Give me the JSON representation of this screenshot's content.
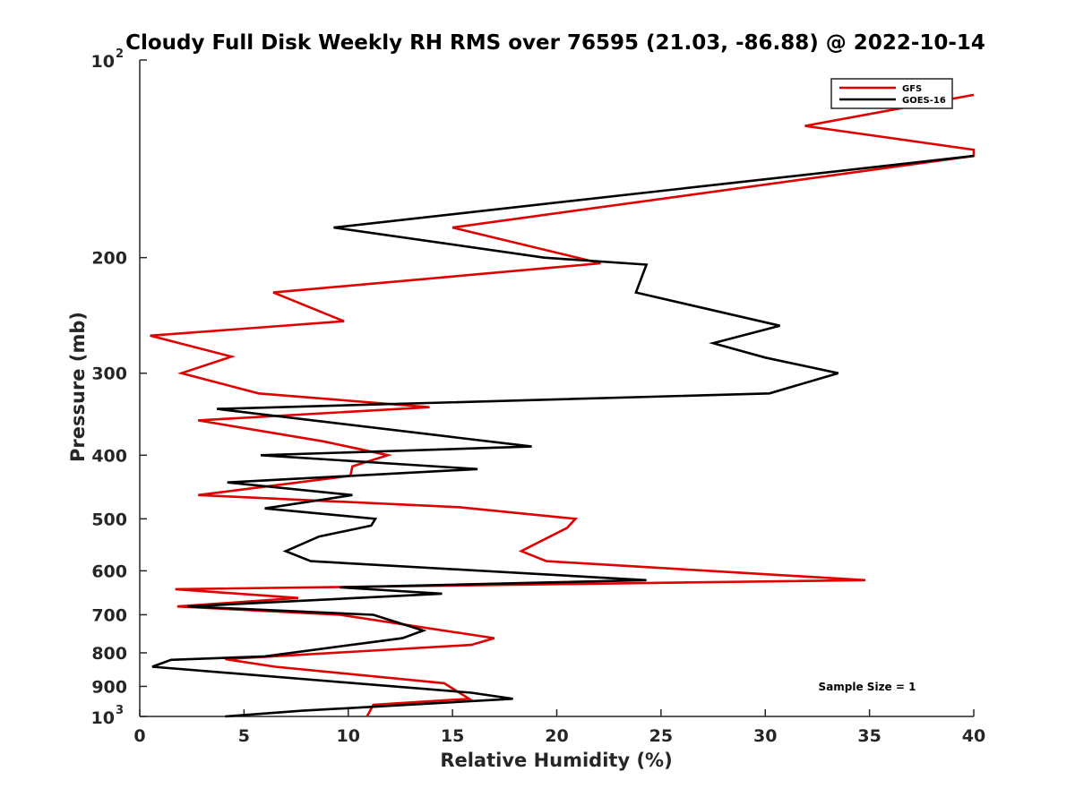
{
  "chart_data": {
    "type": "line",
    "title": "Cloudy Full Disk Weekly RH RMS over 76595 (21.03, -86.88) @ 2022-10-14",
    "xlabel": "Relative Humidity (%)",
    "ylabel": "Pressure (mb)",
    "xlim": [
      0,
      40
    ],
    "ylim": [
      100,
      1000
    ],
    "yscale": "log",
    "y_reversed": true,
    "x_ticks": [
      0,
      5,
      10,
      15,
      20,
      25,
      30,
      35,
      40
    ],
    "x_tick_labels": [
      "0",
      "5",
      "10",
      "15",
      "20",
      "25",
      "30",
      "35",
      "40"
    ],
    "y_ticks": [
      200,
      300,
      400,
      500,
      600,
      700,
      800,
      900
    ],
    "y_tick_labels": [
      "200",
      "300",
      "400",
      "500",
      "600",
      "700",
      "800",
      "900"
    ],
    "y_top_label": {
      "base": "10",
      "exp": "2",
      "value": 100
    },
    "y_bottom_label": {
      "base": "10",
      "exp": "3",
      "value": 1000
    },
    "legend_position": "top-right",
    "annotation": "Sample Size = 1",
    "series": [
      {
        "name": "GFS",
        "color": "#e00000",
        "points": [
          [
            40,
            113
          ],
          [
            31.9,
            126
          ],
          [
            40,
            137
          ],
          [
            40,
            140
          ],
          [
            15.0,
            180
          ],
          [
            22.1,
            204
          ],
          [
            6.4,
            226
          ],
          [
            9.8,
            250
          ],
          [
            0.5,
            263
          ],
          [
            4.4,
            283
          ],
          [
            2.0,
            300
          ],
          [
            5.7,
            322
          ],
          [
            13.9,
            338
          ],
          [
            2.8,
            354
          ],
          [
            8.8,
            381
          ],
          [
            11.9,
            400
          ],
          [
            10.2,
            416
          ],
          [
            10.1,
            430
          ],
          [
            2.8,
            460
          ],
          [
            15.3,
            480
          ],
          [
            20.9,
            500
          ],
          [
            20.5,
            516
          ],
          [
            18.3,
            560
          ],
          [
            19.5,
            580
          ],
          [
            34.8,
            620
          ],
          [
            1.7,
            640
          ],
          [
            7.6,
            660
          ],
          [
            1.8,
            680
          ],
          [
            9.6,
            700
          ],
          [
            17.0,
            760
          ],
          [
            15.9,
            778
          ],
          [
            4.1,
            818
          ],
          [
            6.5,
            840
          ],
          [
            14.6,
            890
          ],
          [
            15.8,
            940
          ],
          [
            11.2,
            960
          ],
          [
            10.9,
            1000
          ]
        ]
      },
      {
        "name": "GOES-16",
        "color": "#000000",
        "points": [
          [
            40,
            140
          ],
          [
            9.3,
            180
          ],
          [
            19.4,
            200
          ],
          [
            24.3,
            205
          ],
          [
            23.8,
            226
          ],
          [
            30.7,
            254
          ],
          [
            27.5,
            270
          ],
          [
            30.0,
            284
          ],
          [
            33.5,
            300
          ],
          [
            30.2,
            322
          ],
          [
            3.7,
            340
          ],
          [
            18.8,
            388
          ],
          [
            5.8,
            400
          ],
          [
            16.2,
            420
          ],
          [
            4.2,
            440
          ],
          [
            10.2,
            460
          ],
          [
            6.0,
            482
          ],
          [
            11.3,
            500
          ],
          [
            11.1,
            512
          ],
          [
            8.6,
            532
          ],
          [
            7.0,
            560
          ],
          [
            8.2,
            580
          ],
          [
            24.3,
            620
          ],
          [
            9.6,
            636
          ],
          [
            14.5,
            650
          ],
          [
            2.3,
            680
          ],
          [
            11.2,
            700
          ],
          [
            13.6,
            740
          ],
          [
            12.6,
            760
          ],
          [
            6.0,
            810
          ],
          [
            1.5,
            820
          ],
          [
            0.6,
            840
          ],
          [
            15.9,
            920
          ],
          [
            17.9,
            940
          ],
          [
            7.8,
            980
          ],
          [
            4.1,
            1000
          ]
        ]
      }
    ]
  }
}
